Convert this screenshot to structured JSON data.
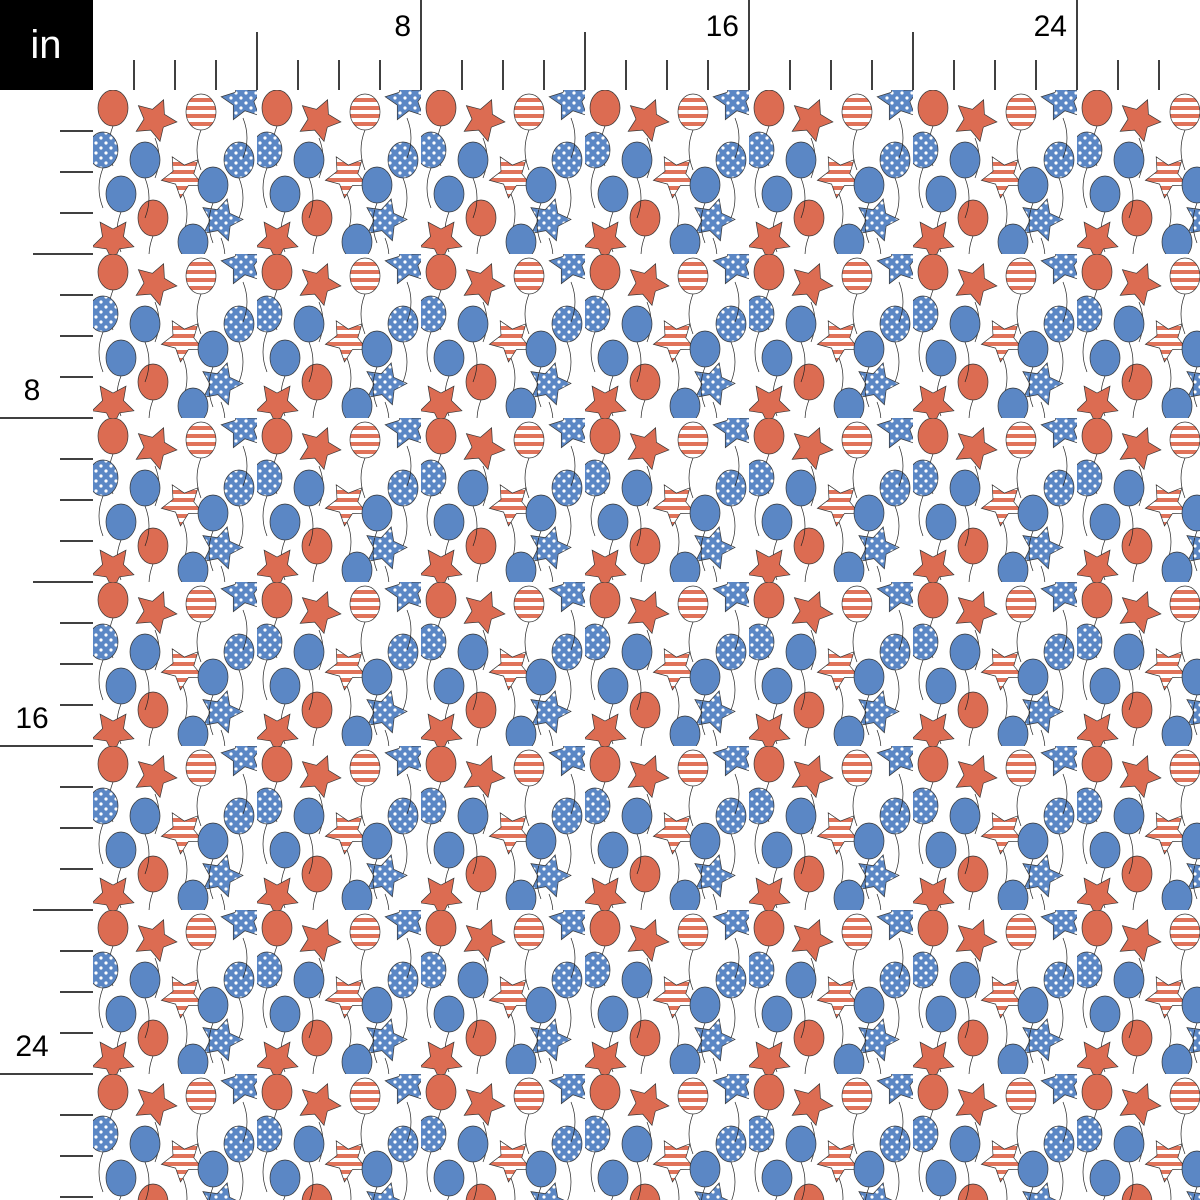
{
  "unit": "in",
  "top_ruler": {
    "labels": [
      "8",
      "16",
      "24"
    ]
  },
  "left_ruler": {
    "labels": [
      "8",
      "16",
      "24"
    ]
  }
}
